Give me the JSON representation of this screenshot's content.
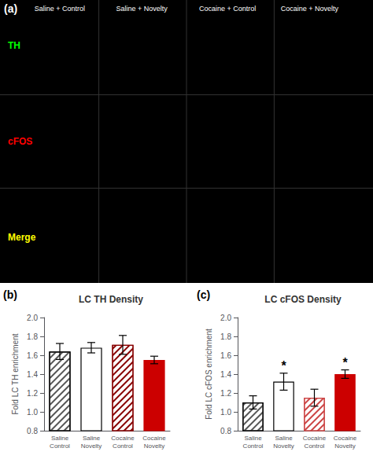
{
  "chart_data": [
    {
      "type": "image",
      "annotations": [
        "(a)"
      ],
      "categories": [
        "Saline + Control",
        "Saline + Novelty",
        "Cocaine + Control",
        "Cocaine + Novelty"
      ],
      "series": [
        {
          "name": "TH",
          "color": "#00ff00"
        },
        {
          "name": "cFOS",
          "color": "#ff0000"
        },
        {
          "name": "Merge",
          "color": "#ffff00"
        }
      ]
    },
    {
      "type": "bar",
      "annotations": [
        "(b)"
      ],
      "title": "LC TH Density",
      "ylabel": "Fold LC TH enrichment",
      "categories": [
        "Saline\nControl",
        "Saline\nNovelty",
        "Cocaine\nControl",
        "Cocaine\nNovelty"
      ],
      "values": [
        1.64,
        1.68,
        1.71,
        1.55
      ],
      "errors": [
        0.085,
        0.055,
        0.1,
        0.04
      ],
      "colors": [
        "white",
        "white",
        "white",
        "#cc0000"
      ],
      "edge_colors": [
        "black",
        "black",
        "#880000",
        "#cc0000"
      ],
      "hatch_colors": [
        "#555555",
        null,
        "#880000",
        null
      ],
      "significance": [
        null,
        null,
        null,
        null
      ],
      "ylim": [
        0.8,
        2.0
      ],
      "yticks": [
        0.8,
        {
          "value": 1,
          "label": "1.0"
        },
        1.2,
        1.4,
        1.6,
        1.8,
        {
          "value": 2,
          "label": "2.0"
        }
      ],
      "grid": false
    },
    {
      "type": "bar",
      "annotations": [
        "(c)"
      ],
      "title": "LC cFOS Density",
      "ylabel": "Fold LC cFOS enrichment",
      "categories": [
        "Saline\nControl",
        "Saline\nNovelty",
        "Cocaine\nControl",
        "Cocaine\nNovelty"
      ],
      "values": [
        1.1,
        1.32,
        1.15,
        1.4
      ],
      "errors": [
        0.07,
        0.09,
        0.09,
        0.045
      ],
      "colors": [
        "white",
        "white",
        "white",
        "#cc0000"
      ],
      "edge_colors": [
        "black",
        "black",
        "#cc4444",
        "#cc0000"
      ],
      "hatch_colors": [
        "#555555",
        null,
        "#cc4444",
        null
      ],
      "significance": [
        null,
        "*",
        null,
        "*"
      ],
      "ylim": [
        0.8,
        2.0
      ],
      "yticks": [
        0.8,
        {
          "value": 1,
          "label": "1.0"
        },
        1.2,
        1.4,
        1.6,
        1.8,
        {
          "value": 2,
          "label": "2.0"
        }
      ],
      "grid": false
    }
  ]
}
